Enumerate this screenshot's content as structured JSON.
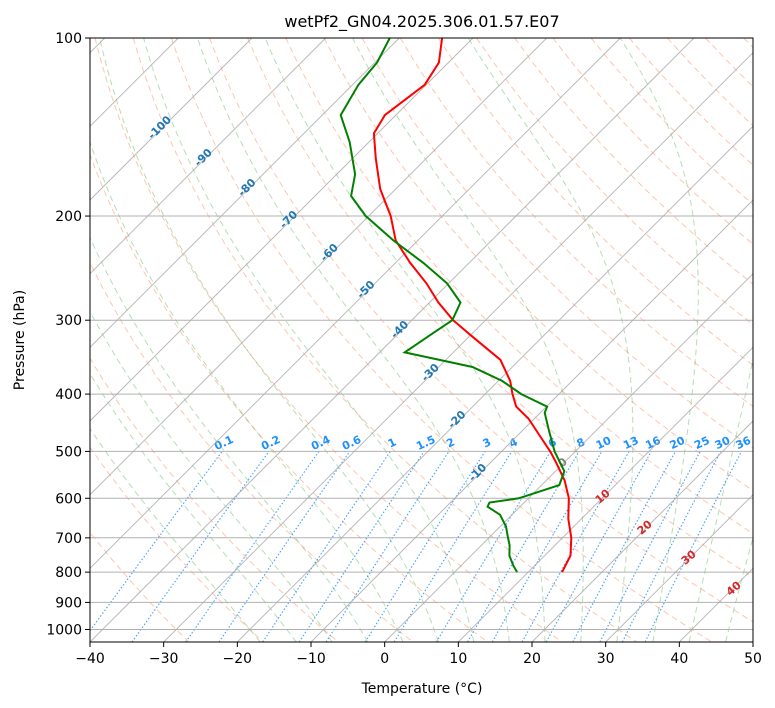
{
  "title": "wetPf2_GN04.2025.306.01.57.E07",
  "colors": {
    "temperature": "#ff0000",
    "dewpoint": "#008000",
    "isotherm_label": "#1f77b4",
    "mixing_ratio": "#1e90ff",
    "dry_adiabat": "#ff7f50",
    "moist_adiabat": "#2ca02c",
    "lcl_label": "#d62728",
    "grid": "#a9a9a9"
  },
  "chart_data": {
    "type": "skew-t",
    "title": "wetPf2_GN04.2025.306.01.57.E07",
    "xlabel": "Temperature (°C)",
    "ylabel": "Pressure (hPa)",
    "xlim": [
      -40,
      50
    ],
    "ylim": [
      1050,
      100
    ],
    "x_ticks": [
      "−40",
      "−30",
      "−20",
      "−10",
      "0",
      "10",
      "20",
      "30",
      "40",
      "50"
    ],
    "y_ticks": [
      "100",
      "200",
      "300",
      "400",
      "500",
      "600",
      "700",
      "800",
      "900",
      "1000"
    ],
    "isotherm_labels": [
      "-100",
      "-90",
      "-80",
      "-70",
      "-60",
      "-50",
      "-40",
      "-30",
      "-20",
      "-10"
    ],
    "mixing_ratio_labels": [
      "0.1",
      "0.2",
      "0.4",
      "0.6",
      "1",
      "1.5",
      "2",
      "3",
      "4",
      "6",
      "8",
      "10",
      "13",
      "16",
      "20",
      "25",
      "30",
      "36"
    ],
    "moist_labels": [
      "0",
      "10",
      "20",
      "30",
      "40"
    ],
    "temperature": [
      {
        "p": 800,
        "t": 14.6
      },
      {
        "p": 750,
        "t": 13.5
      },
      {
        "p": 700,
        "t": 11.2
      },
      {
        "p": 650,
        "t": 8.2
      },
      {
        "p": 620,
        "t": 6.6
      },
      {
        "p": 600,
        "t": 5.5
      },
      {
        "p": 560,
        "t": 2.5
      },
      {
        "p": 520,
        "t": -1.3
      },
      {
        "p": 500,
        "t": -3.4
      },
      {
        "p": 470,
        "t": -7.0
      },
      {
        "p": 440,
        "t": -10.8
      },
      {
        "p": 420,
        "t": -14.1
      },
      {
        "p": 400,
        "t": -16.3
      },
      {
        "p": 380,
        "t": -18.4
      },
      {
        "p": 350,
        "t": -22.6
      },
      {
        "p": 320,
        "t": -29.5
      },
      {
        "p": 300,
        "t": -34.4
      },
      {
        "p": 280,
        "t": -38.8
      },
      {
        "p": 260,
        "t": -43.0
      },
      {
        "p": 240,
        "t": -48.0
      },
      {
        "p": 220,
        "t": -53.0
      },
      {
        "p": 200,
        "t": -57.0
      },
      {
        "p": 180,
        "t": -62.1
      },
      {
        "p": 160,
        "t": -66.8
      },
      {
        "p": 145,
        "t": -70.5
      },
      {
        "p": 135,
        "t": -71.5
      },
      {
        "p": 120,
        "t": -70.2
      },
      {
        "p": 110,
        "t": -71.3
      },
      {
        "p": 100,
        "t": -74.2
      }
    ],
    "dewpoint": [
      {
        "p": 800,
        "t": 8.5
      },
      {
        "p": 780,
        "t": 7.1
      },
      {
        "p": 750,
        "t": 5.2
      },
      {
        "p": 720,
        "t": 3.8
      },
      {
        "p": 700,
        "t": 2.6
      },
      {
        "p": 670,
        "t": 0.8
      },
      {
        "p": 640,
        "t": -1.6
      },
      {
        "p": 620,
        "t": -4.4
      },
      {
        "p": 610,
        "t": -4.7
      },
      {
        "p": 600,
        "t": -1.3
      },
      {
        "p": 570,
        "t": 2.4
      },
      {
        "p": 540,
        "t": 1.2
      },
      {
        "p": 500,
        "t": -2.8
      },
      {
        "p": 460,
        "t": -6.5
      },
      {
        "p": 430,
        "t": -9.4
      },
      {
        "p": 420,
        "t": -9.9
      },
      {
        "p": 400,
        "t": -15.1
      },
      {
        "p": 380,
        "t": -19.5
      },
      {
        "p": 360,
        "t": -25.4
      },
      {
        "p": 340,
        "t": -36.6
      },
      {
        "p": 320,
        "t": -35.6
      },
      {
        "p": 300,
        "t": -34.5
      },
      {
        "p": 280,
        "t": -35.8
      },
      {
        "p": 260,
        "t": -40.2
      },
      {
        "p": 240,
        "t": -46.2
      },
      {
        "p": 220,
        "t": -53.3
      },
      {
        "p": 200,
        "t": -60.4
      },
      {
        "p": 185,
        "t": -65.1
      },
      {
        "p": 170,
        "t": -67.5
      },
      {
        "p": 150,
        "t": -72.6
      },
      {
        "p": 135,
        "t": -77.5
      },
      {
        "p": 120,
        "t": -79.2
      },
      {
        "p": 110,
        "t": -79.7
      },
      {
        "p": 100,
        "t": -81.3
      }
    ]
  }
}
